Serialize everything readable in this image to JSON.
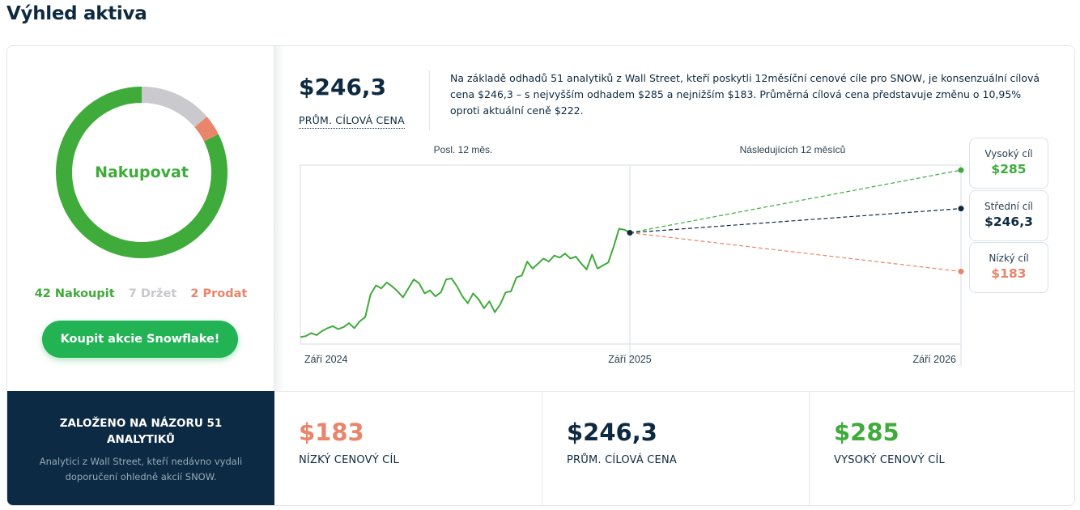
{
  "page_title": "Výhled aktiva",
  "colors": {
    "buy": "#3fab3a",
    "hold": "#c9c9ce",
    "sell": "#e8856b",
    "navy": "#0c2a43",
    "button": "#22b355"
  },
  "rating": {
    "label": "Nakupovat",
    "buy_count": 42,
    "hold_count": 7,
    "sell_count": 2,
    "buy_text": "42 Nakoupit",
    "hold_text": "7 Držet",
    "sell_text": "2 Prodat"
  },
  "buy_button": "Koupit akcie Snowflake!",
  "summary": {
    "avg_price": "$246,3",
    "avg_label": "PRŮM. CÍLOVÁ CENA",
    "description": "Na základě odhadů 51 analytiků z Wall Street, kteří poskytli 12měsíční cenové cíle pro SNOW, je konsenzuální cílová cena $246,3 – s nejvyšším odhadem $285 a nejnižším $183. Průměrná cílová cena představuje změnu o 10,95% oproti aktuální ceně $222."
  },
  "chart": {
    "past_label": "Posl. 12 měs.",
    "future_label": "Následujících 12 měsíců",
    "x_labels": [
      "Září 2024",
      "Září 2025",
      "Září 2026"
    ]
  },
  "chart_data": {
    "type": "line",
    "x_labels": [
      "Září 2024",
      "Září 2025",
      "Září 2026"
    ],
    "ylim": [
      110,
      290
    ],
    "series": [
      {
        "values": [
          117,
          118,
          121,
          119,
          123,
          126,
          128,
          125,
          127,
          131,
          126,
          133,
          137,
          160,
          169,
          166,
          172,
          168,
          163,
          157,
          166,
          175,
          171,
          161,
          164,
          158,
          162,
          175,
          176,
          168,
          158,
          151,
          161,
          155,
          146,
          153,
          142,
          150,
          162,
          163,
          177,
          179,
          193,
          186,
          191,
          196,
          193,
          199,
          197,
          201,
          196,
          198,
          191,
          185,
          200,
          186,
          189,
          192,
          208,
          226,
          225,
          222
        ]
      }
    ],
    "projections": [
      {
        "value": 285
      },
      {
        "value": 246.3
      },
      {
        "value": 183
      }
    ]
  },
  "targets": {
    "high": {
      "label": "Vysoký cíl",
      "value": "$285"
    },
    "mid": {
      "label": "Střední cíl",
      "value": "$246,3"
    },
    "low": {
      "label": "Nízký cíl",
      "value": "$183"
    }
  },
  "analysts": {
    "title": "ZALOŽENO NA NÁZORU 51 ANALYTIKŮ",
    "text": "Analytici z Wall Street, kteří nedávno vydali doporučení ohledně akcií SNOW."
  },
  "stats": {
    "low": {
      "value": "$183",
      "label": "NÍZKÝ CENOVÝ CÍL"
    },
    "avg": {
      "value": "$246,3",
      "label": "PRŮM. CÍLOVÁ CENA"
    },
    "high": {
      "value": "$285",
      "label": "VYSOKÝ CENOVÝ CÍL"
    }
  }
}
